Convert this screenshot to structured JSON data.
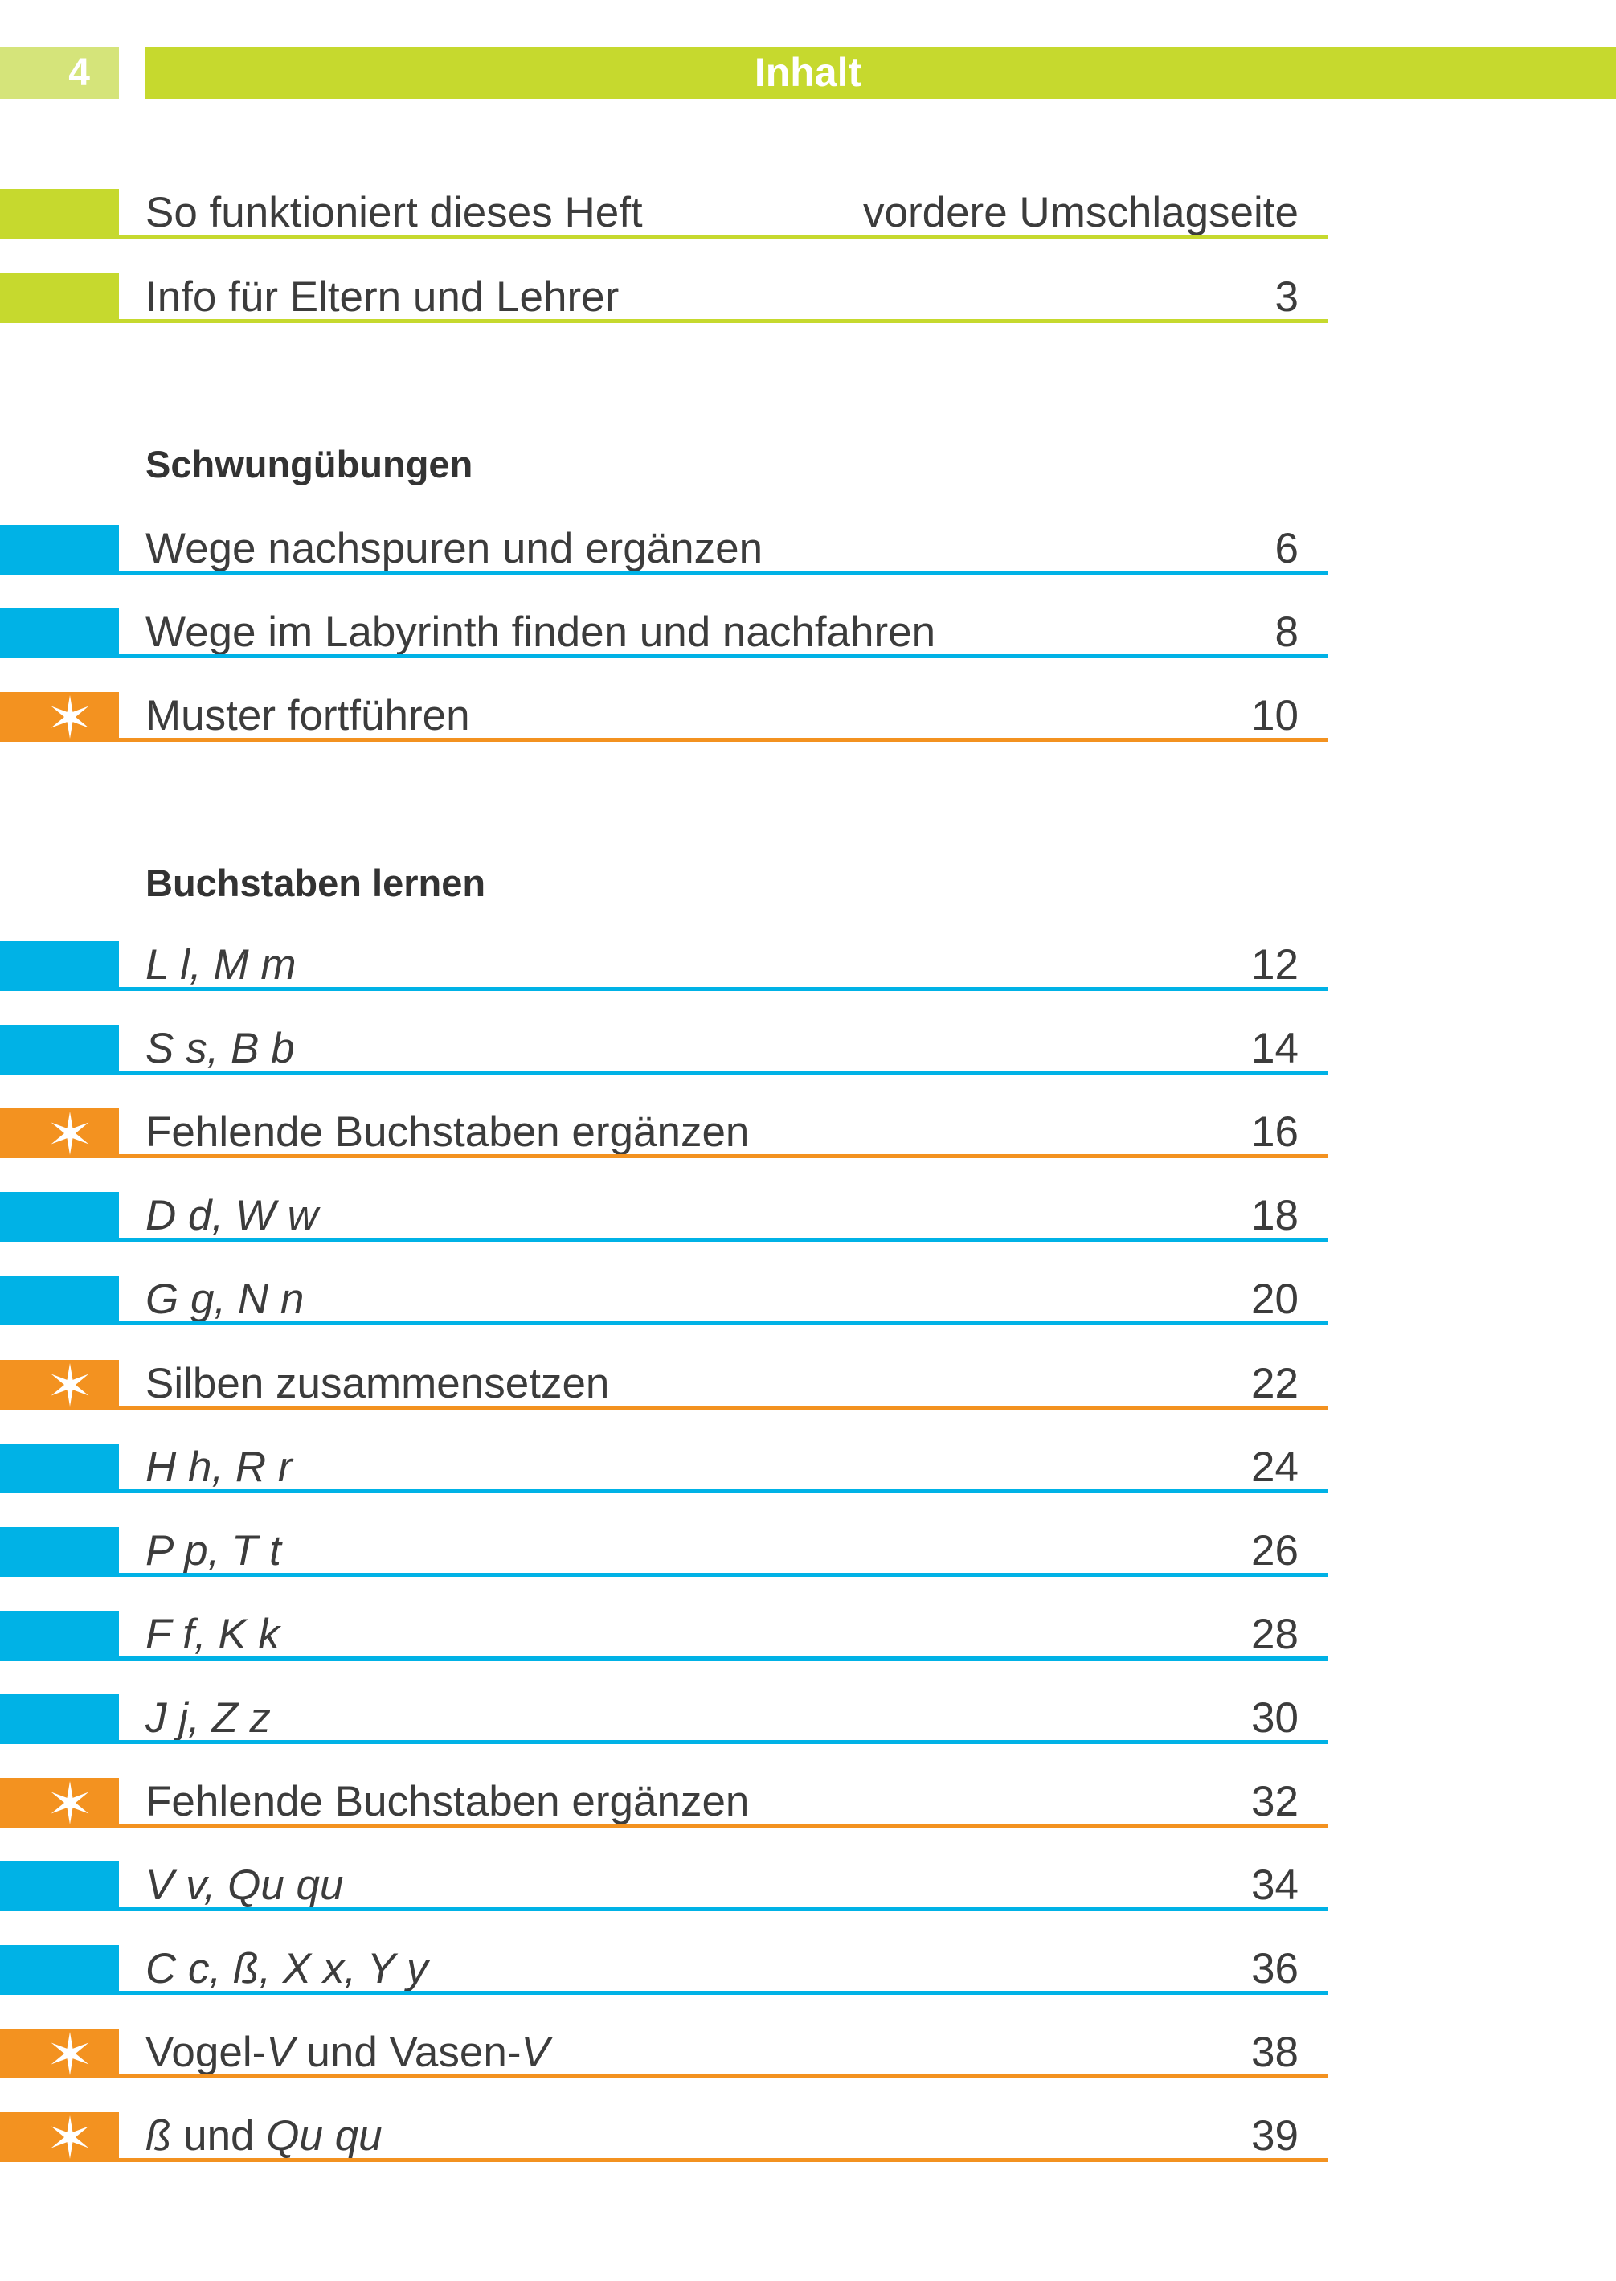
{
  "header": {
    "page_number": "4",
    "title": "Inhalt"
  },
  "intro": [
    {
      "title": "So funktioniert dieses Heft",
      "page": "vordere Umschlagseite"
    },
    {
      "title": "Info für Eltern und Lehrer",
      "page": "3"
    }
  ],
  "sections": [
    {
      "heading": "Schwungübungen",
      "items": [
        {
          "title": "Wege nachspuren und ergänzen",
          "page": "6"
        },
        {
          "title": "Wege im Labyrinth finden und nachfahren",
          "page": "8"
        },
        {
          "title": "Muster fortführen",
          "page": "10",
          "marker": "star-icon"
        }
      ]
    },
    {
      "heading": "Buchstaben lernen",
      "items": [
        {
          "title": "L l, M m",
          "page": "12"
        },
        {
          "title": "S s, B b",
          "page": "14"
        },
        {
          "title": "Fehlende Buchstaben ergänzen",
          "page": "16",
          "marker": "star-icon"
        },
        {
          "title": "D d, W w",
          "page": "18"
        },
        {
          "title": "G g, N n",
          "page": "20"
        },
        {
          "title": "Silben zusammensetzen",
          "page": "22",
          "marker": "star-icon"
        },
        {
          "title": "H h, R r",
          "page": "24"
        },
        {
          "title": "P p, T t",
          "page": "26"
        },
        {
          "title": "F f, K k",
          "page": "28"
        },
        {
          "title": "J j, Z z",
          "page": "30"
        },
        {
          "title": "Fehlende Buchstaben ergänzen",
          "page": "32",
          "marker": "star-icon"
        },
        {
          "title": "V v, Qu qu",
          "page": "34"
        },
        {
          "title": "C c, ß, X x, Y y",
          "page": "36"
        },
        {
          "title_parts": [
            "Vogel-",
            "V",
            " und Vasen-",
            "V"
          ],
          "page": "38",
          "marker": "star-icon"
        },
        {
          "title_parts": [
            "ß",
            " und ",
            "Qu qu"
          ],
          "page": "39",
          "marker": "star-icon"
        }
      ]
    }
  ],
  "colors": {
    "green": "#c6d92e",
    "green_light": "#d5e47a",
    "blue": "#00b2e6",
    "orange": "#f39220",
    "text": "#3c3c3c"
  }
}
